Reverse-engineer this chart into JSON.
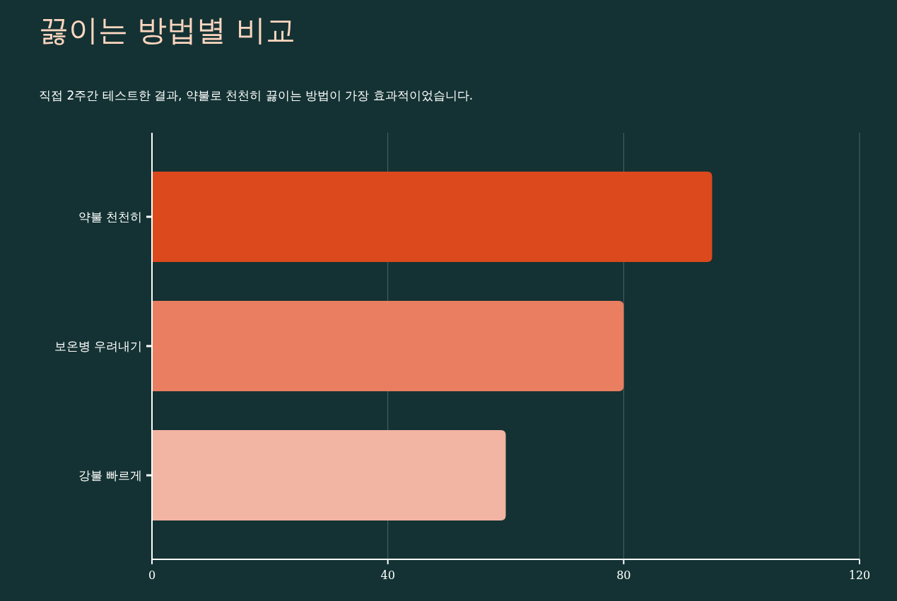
{
  "chart_data": {
    "type": "bar",
    "orientation": "horizontal",
    "title": "끓이는 방법별 비교",
    "subtitle": "직접 2주간 테스트한 결과, 약불로 천천히 끓이는 방법이 가장 효과적이었습니다.",
    "categories": [
      "약불 천천히",
      "보온병 우려내기",
      "강불 빠르게"
    ],
    "values": [
      95,
      80,
      60
    ],
    "colors": [
      "#db491d",
      "#e97e60",
      "#f2b4a3"
    ],
    "xlim": [
      0,
      120
    ],
    "xticks": [
      0,
      40,
      80,
      120
    ],
    "grid": "x"
  }
}
